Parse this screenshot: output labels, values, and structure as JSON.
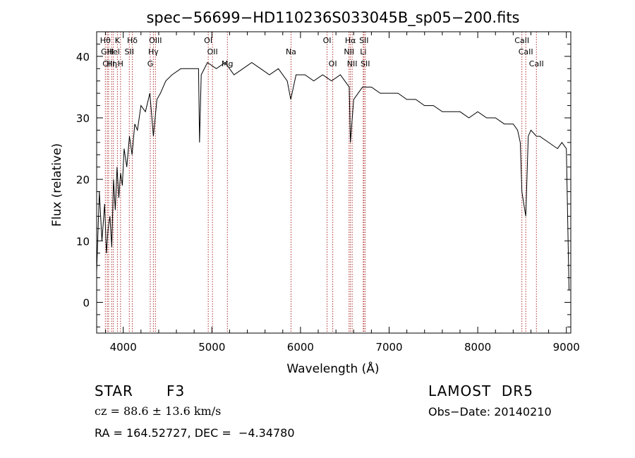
{
  "chart_data": {
    "type": "line",
    "title": "spec−56699−HD110236S033045B_sp05−200.fits",
    "xlabel": "Wavelength (Å)",
    "ylabel": "Flux (relative)",
    "xlim": [
      3700,
      9050
    ],
    "ylim": [
      -5,
      44
    ],
    "xticks": [
      4000,
      5000,
      6000,
      7000,
      8000,
      9000
    ],
    "yticks": [
      0,
      10,
      20,
      30,
      40
    ],
    "grid": false,
    "series": [
      {
        "x": [
          3700,
          3730,
          3760,
          3790,
          3810,
          3830,
          3850,
          3870,
          3890,
          3910,
          3930,
          3950,
          3970,
          3990,
          4010,
          4040,
          4070,
          4100,
          4130,
          4160,
          4200,
          4250,
          4300,
          4340,
          4380,
          4420,
          4480,
          4550,
          4650,
          4750,
          4850,
          4861,
          4880,
          4950,
          5050,
          5150,
          5250,
          5350,
          5450,
          5550,
          5650,
          5750,
          5850,
          5890,
          5950,
          6050,
          6150,
          6250,
          6350,
          6450,
          6550,
          6563,
          6600,
          6700,
          6800,
          6900,
          7000,
          7100,
          7200,
          7300,
          7400,
          7500,
          7600,
          7700,
          7800,
          7900,
          8000,
          8100,
          8200,
          8300,
          8400,
          8450,
          8480,
          8498,
          8520,
          8542,
          8570,
          8600,
          8662,
          8700,
          8800,
          8900,
          8950,
          9000,
          9030
        ],
        "y": [
          5,
          18,
          10,
          16,
          8,
          12,
          14,
          9,
          20,
          15,
          22,
          17,
          21,
          19,
          25,
          22,
          27,
          24,
          29,
          28,
          32,
          31,
          34,
          27,
          33,
          34,
          36,
          37,
          38,
          38,
          38,
          26,
          37,
          39,
          38,
          39,
          37,
          38,
          39,
          38,
          37,
          38,
          36,
          33,
          37,
          37,
          36,
          37,
          36,
          37,
          35,
          26,
          33,
          35,
          35,
          34,
          34,
          34,
          33,
          33,
          32,
          32,
          31,
          31,
          31,
          30,
          31,
          30,
          30,
          29,
          29,
          28,
          26,
          18,
          16,
          14,
          27,
          28,
          27,
          27,
          26,
          25,
          26,
          25,
          2
        ]
      }
    ],
    "line_color": "#000000",
    "marker_color": "#b03030",
    "line_markers": [
      {
        "name": "Hθ",
        "x": 3798,
        "row": 1
      },
      {
        "name": "K",
        "x": 3934,
        "row": 1
      },
      {
        "name": "Hδ",
        "x": 4102,
        "row": 1
      },
      {
        "name": "OIII",
        "x": 4363,
        "row": 1
      },
      {
        "name": "OI",
        "x": 4959,
        "row": 1
      },
      {
        "name": "OI",
        "x": 6300,
        "row": 1
      },
      {
        "name": "Hα",
        "x": 6563,
        "row": 1
      },
      {
        "name": "SII",
        "x": 6716,
        "row": 1
      },
      {
        "name": "CaII",
        "x": 8498,
        "row": 1
      },
      {
        "name": "GIII",
        "x": 3820,
        "row": 2
      },
      {
        "name": "Hel",
        "x": 3889,
        "row": 2
      },
      {
        "name": "SII",
        "x": 4068,
        "row": 2
      },
      {
        "name": "Hγ",
        "x": 4340,
        "row": 2
      },
      {
        "name": "OII",
        "x": 5007,
        "row": 2
      },
      {
        "name": "Na",
        "x": 5893,
        "row": 2
      },
      {
        "name": "NII",
        "x": 6548,
        "row": 2
      },
      {
        "name": "Li",
        "x": 6708,
        "row": 2
      },
      {
        "name": "CaII",
        "x": 8542,
        "row": 2
      },
      {
        "name": "CIII",
        "x": 3835,
        "row": 3
      },
      {
        "name": "Hη",
        "x": 3870,
        "row": 3
      },
      {
        "name": "H",
        "x": 3969,
        "row": 3
      },
      {
        "name": "G",
        "x": 4305,
        "row": 3
      },
      {
        "name": "Mg",
        "x": 5175,
        "row": 3
      },
      {
        "name": "OI",
        "x": 6364,
        "row": 3
      },
      {
        "name": "NII",
        "x": 6583,
        "row": 3
      },
      {
        "name": "SII",
        "x": 6731,
        "row": 3
      },
      {
        "name": "CaII",
        "x": 8662,
        "row": 3
      }
    ]
  },
  "info": {
    "object_class": "STAR",
    "subclass": "F3",
    "cz": "cz = 88.6 ± 13.6 km/s",
    "coords": "RA = 164.52727, DEC =  −4.34780",
    "survey": "LAMOST  DR5",
    "obs_date": "Obs−Date: 20140210"
  }
}
